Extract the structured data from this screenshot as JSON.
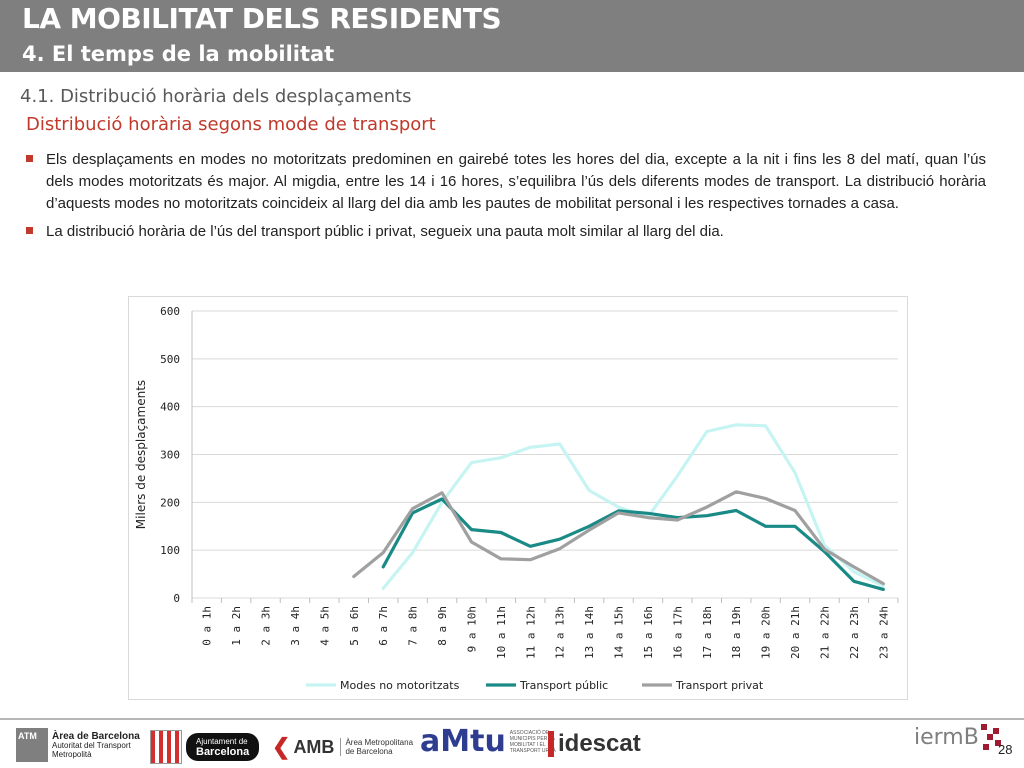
{
  "header": {
    "title": "LA MOBILITAT DELS RESIDENTS",
    "subtitle": "4. El temps de la mobilitat"
  },
  "section_title": "4.1. Distribució horària dels desplaçaments",
  "subsection_title": "Distribució horària segons mode de transport",
  "bullets": [
    "Els desplaçaments en modes no motoritzats predominen en gairebé totes les hores del dia, excepte a la nit i fins les 8 del matí, quan l’ús dels modes motoritzats és major. Al migdia, entre les 14 i 16 hores, s’equilibra l’ús dels diferents modes de transport. La distribució horària d’aquests modes no motoritzats coincideix al llarg del dia amb les pautes de mobilitat personal i les respectives tornades a casa.",
    "La distribució horària de l’ús del transport públic i privat, segueix una pauta molt similar al llarg del dia."
  ],
  "chart_data": {
    "type": "line",
    "title": "",
    "xlabel": "",
    "ylabel": "Milers de desplaçaments",
    "ylim": [
      0,
      600
    ],
    "yticks": [
      "0",
      "100",
      "200",
      "300",
      "400",
      "500",
      "600"
    ],
    "categories": [
      "0 a 1h",
      "1 a 2h",
      "2 a 3h",
      "3 a 4h",
      "4 a 5h",
      "5 a 6h",
      "6 a 7h",
      "7 a 8h",
      "8 a 9h",
      "9 a 10h",
      "10 a 11h",
      "11 a 12h",
      "12 a 13h",
      "13 a 14h",
      "14 a 15h",
      "15 a 16h",
      "16 a 17h",
      "17 a 18h",
      "18 a 19h",
      "19 a 20h",
      "20 a 21h",
      "21 a 22h",
      "22 a 23h",
      "23 a 24h"
    ],
    "grid": true,
    "legend_position": "bottom",
    "series": [
      {
        "name": "Modes no motoritzats",
        "color": "#c6f4f2",
        "values": [
          null,
          null,
          null,
          null,
          null,
          null,
          20,
          95,
          200,
          283,
          293,
          315,
          322,
          225,
          190,
          170,
          255,
          348,
          362,
          360,
          262,
          110,
          55,
          25
        ]
      },
      {
        "name": "Transport públic",
        "color": "#1a8a86",
        "values": [
          null,
          null,
          null,
          null,
          null,
          null,
          65,
          178,
          207,
          143,
          137,
          108,
          123,
          150,
          182,
          177,
          168,
          172,
          183,
          150,
          150,
          97,
          35,
          18
        ]
      },
      {
        "name": "Transport privat",
        "color": "#a0a0a0",
        "values": [
          null,
          null,
          null,
          null,
          null,
          45,
          95,
          187,
          220,
          117,
          82,
          80,
          103,
          142,
          178,
          168,
          163,
          190,
          222,
          208,
          183,
          102,
          65,
          30
        ]
      }
    ]
  },
  "footer": {
    "page_number": "28",
    "logos": {
      "atm": {
        "mark": "ATM",
        "line1": "Àrea de Barcelona",
        "line2": "Autoritat del Transport",
        "line3": "Metropolità"
      },
      "ajuntament": {
        "line1": "Ajuntament de",
        "line2": "Barcelona"
      },
      "amb": {
        "mark": "AMB",
        "line1": "Àrea Metropolitana",
        "line2": "de Barcelona"
      },
      "amtu": {
        "mark": "aMtu",
        "sub": "ASSOCIACIÓ DE MUNICIPIS PER LA MOBILITAT I EL TRANSPORT URBÀ"
      },
      "idescat": {
        "mark": "idescat"
      },
      "ierm": {
        "mark": "iermB"
      }
    }
  }
}
